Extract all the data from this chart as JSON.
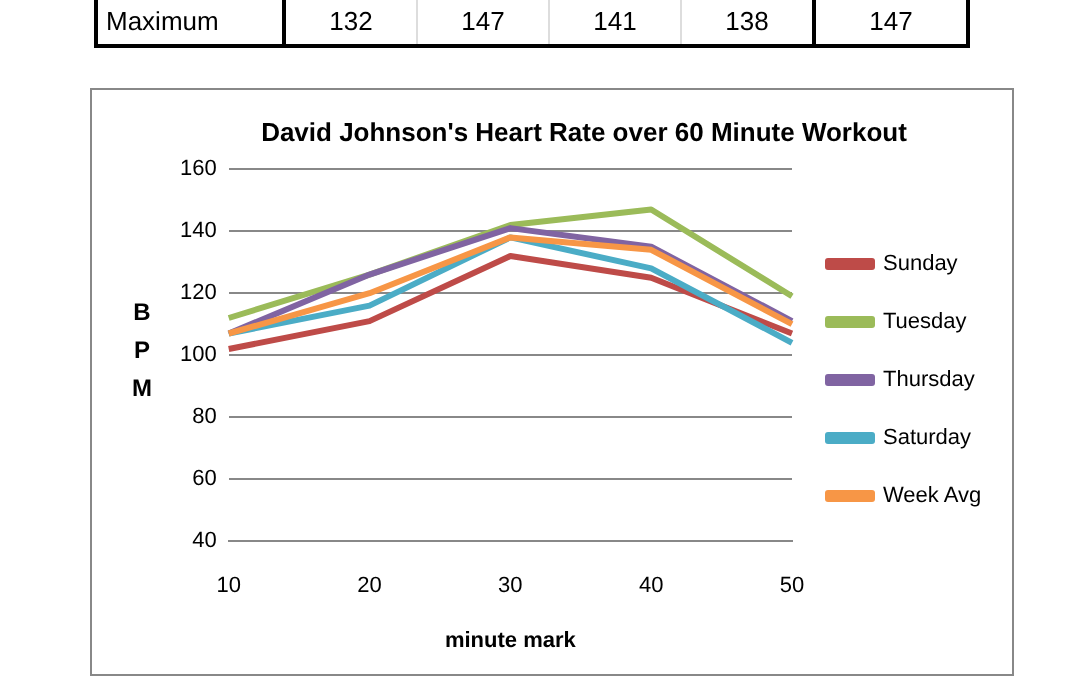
{
  "chart_data": {
    "type": "line",
    "title": "David Johnson's Heart Rate over 60 Minute Workout",
    "xlabel": "minute mark",
    "ylabel": "BPM",
    "categories": [
      "10",
      "20",
      "30",
      "40",
      "50"
    ],
    "series": [
      {
        "name": "Sunday",
        "color": "#be4b48",
        "values": [
          102,
          111,
          132,
          125,
          107
        ]
      },
      {
        "name": "Tuesday",
        "color": "#9bbb59",
        "values": [
          112,
          126,
          142,
          147,
          119
        ]
      },
      {
        "name": "Thursday",
        "color": "#8064a2",
        "values": [
          107,
          126,
          141,
          135,
          111
        ]
      },
      {
        "name": "Saturday",
        "color": "#4bacc6",
        "values": [
          107,
          116,
          138,
          128,
          104
        ]
      },
      {
        "name": "Week Avg",
        "color": "#f79646",
        "values": [
          107,
          120,
          138,
          134,
          110
        ]
      }
    ],
    "ylim": [
      40,
      160
    ],
    "yticks": [
      40,
      60,
      80,
      100,
      120,
      140,
      160
    ],
    "grid": "y",
    "legend": "right",
    "marker": "none",
    "line_style": "solid",
    "annotations": [
      "Maximum",
      "132",
      "147",
      "141",
      "138",
      "147"
    ]
  }
}
